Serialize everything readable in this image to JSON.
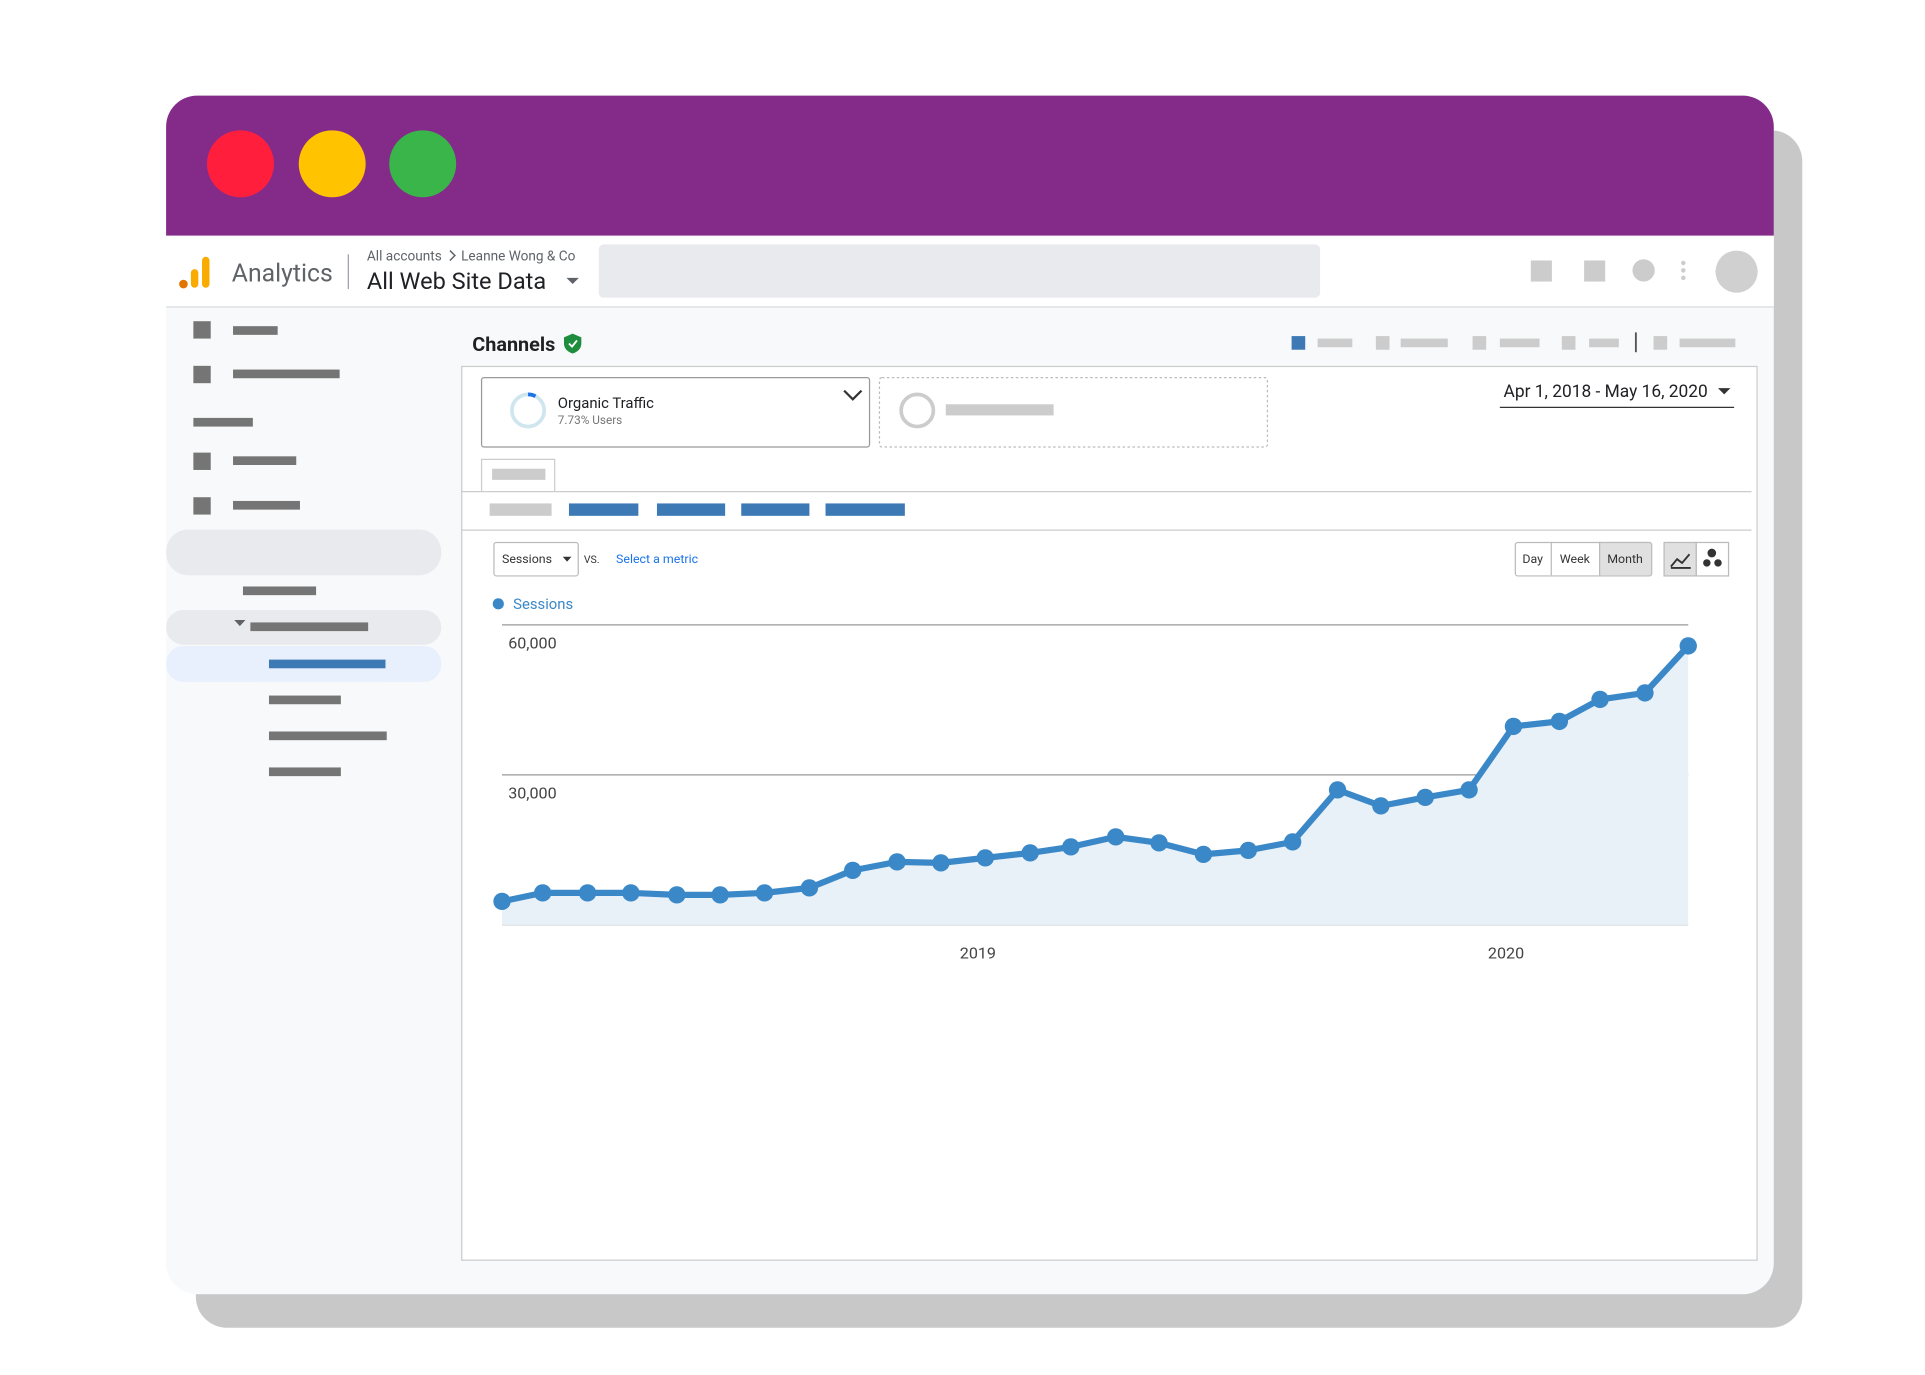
{
  "header": {
    "app_name": "Analytics",
    "breadcrumb": [
      "All accounts",
      "Leanne Wong & Co"
    ],
    "property": "All Web Site Data"
  },
  "page_title": "Channels",
  "segment": {
    "name": "Organic Traffic",
    "detail": "7.73% Users"
  },
  "date_range": "Apr 1, 2018 - May 16, 2020",
  "controls": {
    "metric": "Sessions",
    "vs": "VS.",
    "select_metric": "Select a metric",
    "periods": [
      "Day",
      "Week",
      "Month"
    ]
  },
  "chart_data": {
    "type": "line",
    "x": [
      2018.099,
      2018.176,
      2018.261,
      2018.343,
      2018.43,
      2018.512,
      2018.596,
      2018.681,
      2018.763,
      2018.847,
      2018.93,
      2019.014,
      2019.099,
      2019.176,
      2019.261,
      2019.343,
      2019.427,
      2019.512,
      2019.596,
      2019.681,
      2019.763,
      2019.847,
      2019.93,
      2020.014,
      2020.101,
      2020.178,
      2020.263,
      2020.345
    ],
    "series": [
      {
        "name": "Sessions",
        "color": "#3b88c8",
        "values": [
          4700,
          6400,
          6400,
          6400,
          6000,
          6000,
          6400,
          7400,
          10900,
          12600,
          12400,
          13400,
          14400,
          15600,
          17600,
          16400,
          14100,
          14900,
          16600,
          27000,
          23800,
          25500,
          27000,
          39700,
          40700,
          45100,
          46400,
          55800
        ]
      }
    ],
    "xlim": [
      2018.099,
      2020.345
    ],
    "xticks": [
      2019,
      2020
    ],
    "ylim": [
      0,
      60000
    ],
    "yticks": [
      {
        "value": 60000,
        "label": "60,000"
      },
      {
        "value": 30000,
        "label": "30,000"
      }
    ],
    "grid": true,
    "area": true
  }
}
